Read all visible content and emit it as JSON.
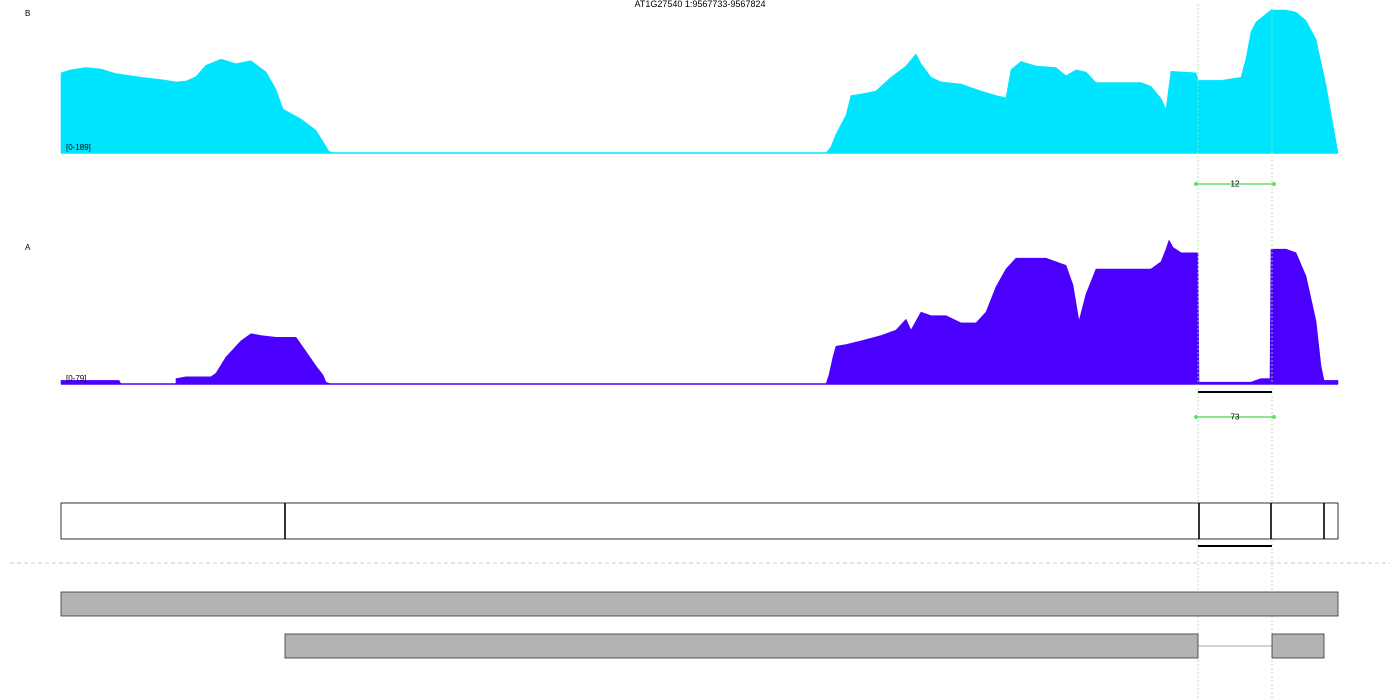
{
  "title": "AT1G27540 1:9567733-9567824",
  "chart_data": {
    "type": "area",
    "x_range": [
      0,
      1277
    ],
    "tracks": [
      {
        "name": "B",
        "range_label": "[0-189]",
        "ymax": 189,
        "color": "#00e5ff",
        "profile": [
          [
            0,
            106
          ],
          [
            10,
            110
          ],
          [
            25,
            113
          ],
          [
            40,
            111
          ],
          [
            55,
            105
          ],
          [
            80,
            100
          ],
          [
            100,
            97
          ],
          [
            115,
            94
          ],
          [
            125,
            95
          ],
          [
            135,
            101
          ],
          [
            145,
            116
          ],
          [
            160,
            124
          ],
          [
            175,
            118
          ],
          [
            190,
            122
          ],
          [
            205,
            107
          ],
          [
            215,
            84
          ],
          [
            222,
            58
          ],
          [
            240,
            45
          ],
          [
            255,
            30
          ],
          [
            262,
            15
          ],
          [
            268,
            2
          ],
          [
            275,
            0
          ],
          [
            765,
            0
          ],
          [
            770,
            8
          ],
          [
            775,
            25
          ],
          [
            785,
            50
          ],
          [
            790,
            76
          ],
          [
            800,
            78
          ],
          [
            815,
            82
          ],
          [
            830,
            100
          ],
          [
            845,
            115
          ],
          [
            855,
            131
          ],
          [
            860,
            118
          ],
          [
            870,
            100
          ],
          [
            880,
            94
          ],
          [
            900,
            91
          ],
          [
            920,
            82
          ],
          [
            935,
            76
          ],
          [
            945,
            73
          ],
          [
            950,
            110
          ],
          [
            960,
            121
          ],
          [
            975,
            115
          ],
          [
            995,
            113
          ],
          [
            1005,
            102
          ],
          [
            1015,
            110
          ],
          [
            1025,
            107
          ],
          [
            1035,
            93
          ],
          [
            1055,
            93
          ],
          [
            1080,
            93
          ],
          [
            1090,
            88
          ],
          [
            1100,
            72
          ],
          [
            1105,
            58
          ],
          [
            1110,
            108
          ],
          [
            1135,
            106
          ],
          [
            1137,
            96
          ],
          [
            1160,
            96
          ],
          [
            1180,
            100
          ],
          [
            1185,
            125
          ],
          [
            1190,
            160
          ],
          [
            1195,
            173
          ],
          [
            1210,
            189
          ],
          [
            1225,
            189
          ],
          [
            1235,
            186
          ],
          [
            1245,
            175
          ],
          [
            1255,
            150
          ],
          [
            1265,
            90
          ],
          [
            1277,
            0
          ]
        ]
      },
      {
        "name": "A",
        "range_label": "[0-79]",
        "ymax": 79,
        "color": "#4b00ff",
        "profile": [
          [
            0,
            2
          ],
          [
            58,
            2
          ],
          [
            60,
            0
          ],
          [
            115,
            0
          ],
          [
            115,
            3
          ],
          [
            125,
            4
          ],
          [
            150,
            4
          ],
          [
            155,
            6
          ],
          [
            165,
            15
          ],
          [
            180,
            24
          ],
          [
            190,
            28
          ],
          [
            200,
            27
          ],
          [
            215,
            26
          ],
          [
            235,
            26
          ],
          [
            245,
            18
          ],
          [
            255,
            10
          ],
          [
            262,
            5
          ],
          [
            265,
            1
          ],
          [
            270,
            0
          ],
          [
            765,
            0
          ],
          [
            768,
            5
          ],
          [
            772,
            15
          ],
          [
            775,
            21
          ],
          [
            785,
            22
          ],
          [
            800,
            24
          ],
          [
            820,
            27
          ],
          [
            835,
            30
          ],
          [
            845,
            36
          ],
          [
            850,
            30
          ],
          [
            860,
            40
          ],
          [
            870,
            38
          ],
          [
            885,
            38
          ],
          [
            900,
            34
          ],
          [
            915,
            34
          ],
          [
            925,
            40
          ],
          [
            935,
            54
          ],
          [
            945,
            64
          ],
          [
            955,
            70
          ],
          [
            965,
            70
          ],
          [
            985,
            70
          ],
          [
            1005,
            66
          ],
          [
            1012,
            55
          ],
          [
            1018,
            35
          ],
          [
            1025,
            50
          ],
          [
            1035,
            64
          ],
          [
            1045,
            64
          ],
          [
            1090,
            64
          ],
          [
            1100,
            68
          ],
          [
            1105,
            75
          ],
          [
            1108,
            80
          ],
          [
            1112,
            76
          ],
          [
            1120,
            73
          ],
          [
            1137,
            73
          ],
          [
            1138,
            1
          ],
          [
            1190,
            1
          ],
          [
            1200,
            3
          ],
          [
            1209,
            3
          ],
          [
            1210,
            75
          ],
          [
            1225,
            75
          ],
          [
            1235,
            73
          ],
          [
            1245,
            60
          ],
          [
            1255,
            35
          ],
          [
            1260,
            10
          ],
          [
            1263,
            2
          ],
          [
            1277,
            2
          ]
        ]
      }
    ],
    "junctions": [
      {
        "label": "12",
        "color": "#66dd66"
      },
      {
        "label": "73",
        "color": "#66dd66"
      }
    ],
    "gene_model": {
      "boundaries": [
        0,
        224,
        1138,
        1210,
        1263,
        1277
      ]
    },
    "transcripts": [
      {
        "exons": [
          [
            0,
            1277
          ]
        ]
      },
      {
        "exons": [
          [
            224,
            1137
          ],
          [
            1211,
            1263
          ]
        ]
      }
    ],
    "highlight_region": [
      1137,
      1211
    ]
  }
}
